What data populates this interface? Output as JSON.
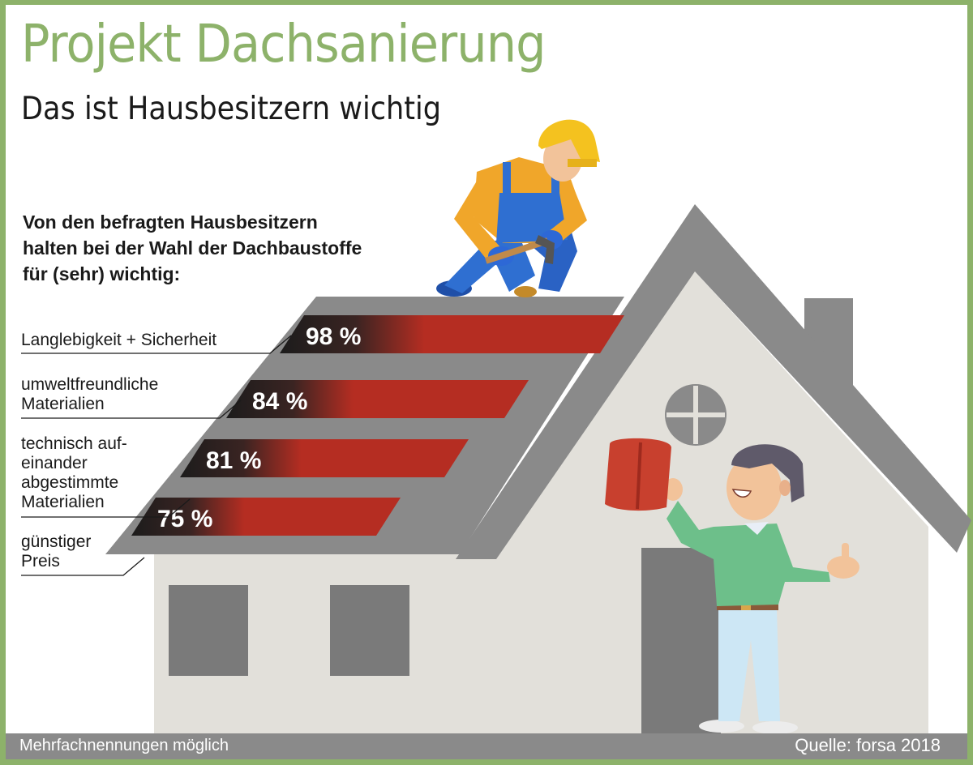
{
  "header": {
    "title": "Projekt Dachsanierung",
    "subtitle": "Das ist Hausbesitzern wichtig"
  },
  "intro": {
    "line1": "Von den befragten Hausbesitzern",
    "line2": "halten bei der Wahl der Dachbaustoffe",
    "line3": "für (sehr) wichtig:"
  },
  "chart_data": {
    "type": "bar",
    "orientation": "horizontal",
    "categories": [
      "Langlebigkeit + Sicherheit",
      "umweltfreundliche Materialien",
      "technisch aufeinander abgestimmte Materialien",
      "günstiger Preis"
    ],
    "category_lines": [
      [
        "Langlebigkeit + Sicherheit"
      ],
      [
        "umweltfreundliche",
        "Materialien"
      ],
      [
        "technisch auf-",
        "einander",
        "abgestimmte",
        "Materialien"
      ],
      [
        "günstiger",
        "Preis"
      ]
    ],
    "values": [
      98,
      84,
      81,
      75
    ],
    "labels": [
      "98 %",
      "84 %",
      "81 %",
      "75 %"
    ],
    "unit": "%",
    "bar_color": "#b52d22",
    "title": "",
    "xlabel": "",
    "ylabel": ""
  },
  "footer": {
    "note": "Mehrfachnennungen möglich",
    "source": "Quelle: forsa 2018"
  },
  "colors": {
    "accent": "#8db26a",
    "roof": "#8a8a8a",
    "wall": "#e2e0da",
    "bar": "#b52d22"
  }
}
